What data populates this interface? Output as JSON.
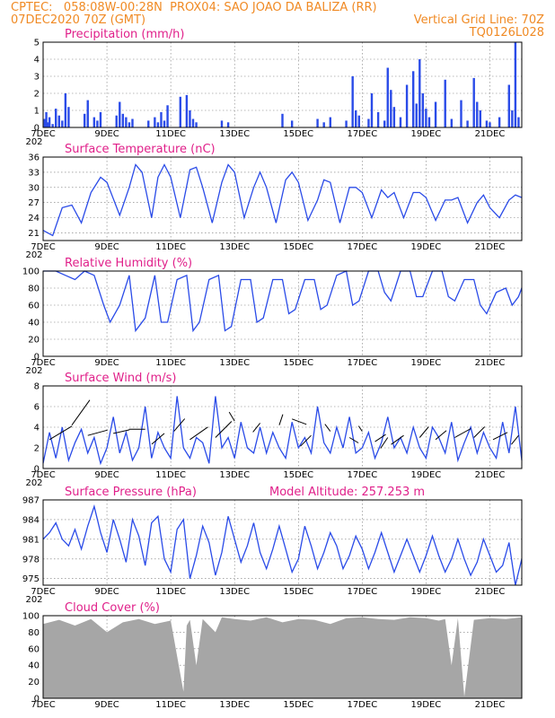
{
  "header": {
    "line1": "CPTEC:   058:08W-00:28N  PROX04: SAO JOAO DA BALIZA (RR)",
    "line2_left": "07DEC2020 70Z (GMT)",
    "line2_right": "Vertical Grid Line: 70Z",
    "line3_right": "TQ0126L028"
  },
  "x_axis": {
    "days": [
      7,
      22
    ],
    "ticks": [
      {
        "day": 7,
        "label": "7DEC"
      },
      {
        "day": 9,
        "label": "9DEC"
      },
      {
        "day": 11,
        "label": "11DEC"
      },
      {
        "day": 13,
        "label": "13DEC"
      },
      {
        "day": 15,
        "label": "15DEC"
      },
      {
        "day": 17,
        "label": "17DEC"
      },
      {
        "day": 19,
        "label": "19DEC"
      },
      {
        "day": 21,
        "label": "21DEC"
      }
    ],
    "year_stub": "202"
  },
  "chart_data": [
    {
      "id": "precip",
      "type": "bar",
      "title": "Precipitation (mm/h)",
      "ylim": [
        0,
        5
      ],
      "yticks": [
        0,
        1,
        2,
        3,
        4,
        5
      ],
      "grid": true,
      "series": [
        {
          "values_note": "hourly bars",
          "x": [
            7.05,
            7.1,
            7.15,
            7.2,
            7.3,
            7.4,
            7.5,
            7.6,
            7.7,
            7.8,
            8.3,
            8.4,
            8.6,
            8.7,
            8.8,
            9.3,
            9.4,
            9.5,
            9.6,
            9.7,
            9.8,
            10.3,
            10.5,
            10.6,
            10.7,
            10.8,
            10.9,
            11.3,
            11.5,
            11.6,
            11.7,
            11.8,
            12.6,
            12.8,
            14.5,
            14.8,
            15.6,
            15.8,
            16.0,
            16.5,
            16.7,
            16.8,
            16.9,
            17.2,
            17.3,
            17.5,
            17.7,
            17.8,
            17.9,
            18.0,
            18.2,
            18.4,
            18.6,
            18.7,
            18.8,
            18.9,
            19.0,
            19.1,
            19.3,
            19.6,
            19.8,
            20.1,
            20.3,
            20.5,
            20.6,
            20.7,
            20.9,
            21.0,
            21.3,
            21.6,
            21.7,
            21.8,
            21.9
          ],
          "y": [
            0.5,
            0.9,
            0.3,
            0.6,
            0.2,
            1.1,
            0.7,
            0.4,
            2.0,
            1.2,
            0.8,
            1.6,
            0.6,
            0.4,
            0.9,
            0.7,
            1.5,
            0.8,
            0.6,
            0.3,
            0.5,
            0.4,
            0.6,
            0.3,
            0.9,
            0.4,
            1.3,
            1.8,
            1.9,
            1.0,
            0.5,
            0.3,
            0.4,
            0.3,
            0.8,
            0.4,
            0.5,
            0.3,
            0.6,
            0.4,
            3.0,
            1.0,
            0.7,
            0.5,
            2.0,
            0.9,
            0.4,
            3.5,
            2.2,
            1.2,
            0.6,
            2.5,
            3.3,
            1.4,
            4.0,
            2.0,
            1.1,
            0.6,
            1.5,
            2.8,
            0.5,
            1.6,
            0.4,
            2.9,
            1.5,
            1.0,
            0.4,
            0.3,
            0.6,
            2.5,
            1.0,
            5.0,
            0.6
          ]
        }
      ]
    },
    {
      "id": "temp",
      "type": "line",
      "title": "Surface Temperature (nC)",
      "ylim": [
        19.5,
        36
      ],
      "yticks": [
        21,
        24,
        27,
        30,
        33,
        36
      ],
      "grid": true,
      "series": [
        {
          "x": [
            7.0,
            7.3,
            7.6,
            7.9,
            8.2,
            8.5,
            8.8,
            9.0,
            9.4,
            9.7,
            9.9,
            10.1,
            10.4,
            10.6,
            10.8,
            11.0,
            11.3,
            11.6,
            11.8,
            12.0,
            12.3,
            12.6,
            12.8,
            13.0,
            13.3,
            13.6,
            13.8,
            14.0,
            14.3,
            14.6,
            14.8,
            15.0,
            15.3,
            15.6,
            15.8,
            16.0,
            16.3,
            16.6,
            16.8,
            17.0,
            17.3,
            17.6,
            17.8,
            18.0,
            18.3,
            18.6,
            18.8,
            19.0,
            19.3,
            19.6,
            19.8,
            20.0,
            20.3,
            20.6,
            20.8,
            21.0,
            21.3,
            21.6,
            21.8,
            22.0
          ],
          "y": [
            21.5,
            20.5,
            26.0,
            26.5,
            23.0,
            29.0,
            32.0,
            31.0,
            24.5,
            30.0,
            34.5,
            33.0,
            24.0,
            32.0,
            34.5,
            32.0,
            24.0,
            33.5,
            34.0,
            30.0,
            23.0,
            31.0,
            34.5,
            33.0,
            24.0,
            30.0,
            33.0,
            30.0,
            23.0,
            31.5,
            33.0,
            31.0,
            23.5,
            27.5,
            31.5,
            31.0,
            23.0,
            30.0,
            30.0,
            29.0,
            24.0,
            29.5,
            28.0,
            29.0,
            24.0,
            29.0,
            29.0,
            28.0,
            23.5,
            27.5,
            27.5,
            28.0,
            23.0,
            27.0,
            28.5,
            26.0,
            24.0,
            27.5,
            28.5,
            28.0
          ]
        }
      ]
    },
    {
      "id": "rh",
      "type": "line",
      "title": "Relative Humidity (%)",
      "ylim": [
        0,
        100
      ],
      "yticks": [
        0,
        20,
        40,
        60,
        80,
        100
      ],
      "grid": true,
      "series": [
        {
          "x": [
            7.0,
            7.4,
            7.7,
            8.0,
            8.3,
            8.6,
            8.9,
            9.1,
            9.4,
            9.7,
            9.9,
            10.2,
            10.5,
            10.7,
            10.9,
            11.2,
            11.5,
            11.7,
            11.9,
            12.2,
            12.5,
            12.7,
            12.9,
            13.2,
            13.5,
            13.7,
            13.9,
            14.2,
            14.5,
            14.7,
            14.9,
            15.2,
            15.5,
            15.7,
            15.9,
            16.2,
            16.5,
            16.7,
            16.9,
            17.2,
            17.5,
            17.7,
            17.9,
            18.2,
            18.5,
            18.7,
            18.9,
            19.2,
            19.5,
            19.7,
            19.9,
            20.2,
            20.5,
            20.7,
            20.9,
            21.2,
            21.5,
            21.7,
            21.9,
            22.0
          ],
          "y": [
            100,
            100,
            95,
            90,
            100,
            95,
            60,
            40,
            60,
            95,
            30,
            45,
            95,
            40,
            40,
            90,
            95,
            30,
            40,
            90,
            95,
            30,
            35,
            90,
            90,
            40,
            45,
            90,
            90,
            50,
            55,
            90,
            90,
            55,
            60,
            95,
            100,
            60,
            65,
            100,
            100,
            75,
            65,
            100,
            100,
            70,
            70,
            100,
            100,
            70,
            65,
            90,
            90,
            60,
            50,
            75,
            80,
            60,
            70,
            80
          ]
        }
      ]
    },
    {
      "id": "wind",
      "type": "line",
      "title": "Surface Wind (m/s)",
      "ylim": [
        0,
        8
      ],
      "yticks": [
        0,
        2,
        4,
        6,
        8
      ],
      "grid": true,
      "series": [
        {
          "x": [
            7.0,
            7.2,
            7.4,
            7.6,
            7.8,
            8.0,
            8.2,
            8.4,
            8.6,
            8.8,
            9.0,
            9.2,
            9.4,
            9.6,
            9.8,
            10.0,
            10.2,
            10.4,
            10.6,
            10.8,
            11.0,
            11.2,
            11.4,
            11.6,
            11.8,
            12.0,
            12.2,
            12.4,
            12.6,
            12.8,
            13.0,
            13.2,
            13.4,
            13.6,
            13.8,
            14.0,
            14.2,
            14.4,
            14.6,
            14.8,
            15.0,
            15.2,
            15.4,
            15.6,
            15.8,
            16.0,
            16.2,
            16.4,
            16.6,
            16.8,
            17.0,
            17.2,
            17.4,
            17.6,
            17.8,
            18.0,
            18.2,
            18.4,
            18.6,
            18.8,
            19.0,
            19.2,
            19.4,
            19.6,
            19.8,
            20.0,
            20.2,
            20.4,
            20.6,
            20.8,
            21.0,
            21.2,
            21.4,
            21.6,
            21.8,
            22.0
          ],
          "y": [
            0.5,
            3.5,
            1.0,
            4.0,
            0.8,
            2.5,
            3.8,
            1.5,
            3.0,
            0.5,
            2.0,
            5.0,
            1.5,
            3.5,
            0.8,
            2.0,
            6.0,
            1.0,
            3.5,
            2.0,
            1.0,
            7.0,
            2.0,
            1.0,
            3.0,
            2.5,
            0.5,
            7.0,
            2.0,
            3.0,
            1.0,
            4.5,
            2.0,
            1.5,
            4.0,
            1.5,
            3.5,
            2.0,
            1.0,
            4.5,
            2.0,
            3.0,
            1.5,
            6.0,
            2.5,
            1.5,
            4.0,
            2.0,
            5.0,
            1.5,
            2.0,
            3.5,
            1.0,
            2.5,
            5.0,
            2.0,
            3.0,
            1.5,
            4.0,
            2.0,
            1.0,
            4.0,
            3.0,
            1.5,
            4.5,
            0.8,
            2.5,
            4.0,
            1.5,
            3.5,
            2.0,
            1.0,
            4.5,
            1.5,
            6.0,
            0.8
          ]
        }
      ]
    },
    {
      "id": "pres",
      "type": "line",
      "title": "Surface Pressure (hPa)",
      "subtitle": "Model Altitude: 257.253 m",
      "ylim": [
        974,
        987
      ],
      "yticks": [
        975,
        978,
        981,
        984,
        987
      ],
      "grid": true,
      "series": [
        {
          "x": [
            7.0,
            7.2,
            7.4,
            7.6,
            7.8,
            8.0,
            8.2,
            8.4,
            8.6,
            8.8,
            9.0,
            9.2,
            9.4,
            9.6,
            9.8,
            10.0,
            10.2,
            10.4,
            10.6,
            10.8,
            11.0,
            11.2,
            11.4,
            11.6,
            11.8,
            12.0,
            12.2,
            12.4,
            12.6,
            12.8,
            13.0,
            13.2,
            13.4,
            13.6,
            13.8,
            14.0,
            14.2,
            14.4,
            14.6,
            14.8,
            15.0,
            15.2,
            15.4,
            15.6,
            15.8,
            16.0,
            16.2,
            16.4,
            16.6,
            16.8,
            17.0,
            17.2,
            17.4,
            17.6,
            17.8,
            18.0,
            18.2,
            18.4,
            18.6,
            18.8,
            19.0,
            19.2,
            19.4,
            19.6,
            19.8,
            20.0,
            20.2,
            20.4,
            20.6,
            20.8,
            21.0,
            21.2,
            21.4,
            21.6,
            21.8,
            22.0
          ],
          "y": [
            981.0,
            982.0,
            983.5,
            981.0,
            980.0,
            982.5,
            979.5,
            983.0,
            986.0,
            982.0,
            979.0,
            984.0,
            981.0,
            977.5,
            984.0,
            981.5,
            977.0,
            983.5,
            984.5,
            978.0,
            976.0,
            982.5,
            984.0,
            975.0,
            978.5,
            983.0,
            980.5,
            975.5,
            979.0,
            984.5,
            981.0,
            977.5,
            980.0,
            983.5,
            979.0,
            976.5,
            979.5,
            983.0,
            979.5,
            976.0,
            978.0,
            983.0,
            980.0,
            976.5,
            979.0,
            982.0,
            980.0,
            976.5,
            978.5,
            981.5,
            979.5,
            976.5,
            979.0,
            982.0,
            979.0,
            976.0,
            978.5,
            981.0,
            978.5,
            976.0,
            978.5,
            981.5,
            978.5,
            976.0,
            978.0,
            981.0,
            978.0,
            975.5,
            977.5,
            981.0,
            978.5,
            976.0,
            977.0,
            980.5,
            974.0,
            978.0
          ]
        }
      ]
    },
    {
      "id": "cloud",
      "type": "area",
      "title": "Cloud Cover (%)",
      "ylim": [
        0,
        100
      ],
      "yticks": [
        0,
        20,
        40,
        60,
        80,
        100
      ],
      "grid": true,
      "series": [
        {
          "x": [
            7.0,
            7.5,
            8.0,
            8.5,
            9.0,
            9.5,
            10.0,
            10.5,
            11.0,
            11.4,
            11.5,
            11.6,
            11.8,
            12.0,
            12.4,
            12.6,
            13.0,
            13.5,
            14.0,
            14.5,
            15.0,
            15.5,
            16.0,
            16.5,
            17.0,
            17.5,
            18.0,
            18.5,
            19.0,
            19.4,
            19.6,
            19.8,
            20.0,
            20.2,
            20.5,
            21.0,
            21.5,
            22.0
          ],
          "y": [
            90,
            95,
            88,
            96,
            80,
            92,
            96,
            90,
            94,
            8,
            88,
            95,
            40,
            96,
            80,
            98,
            96,
            94,
            98,
            92,
            96,
            95,
            90,
            97,
            98,
            96,
            95,
            98,
            97,
            94,
            96,
            40,
            97,
            2,
            95,
            97,
            96,
            98
          ]
        }
      ]
    }
  ]
}
